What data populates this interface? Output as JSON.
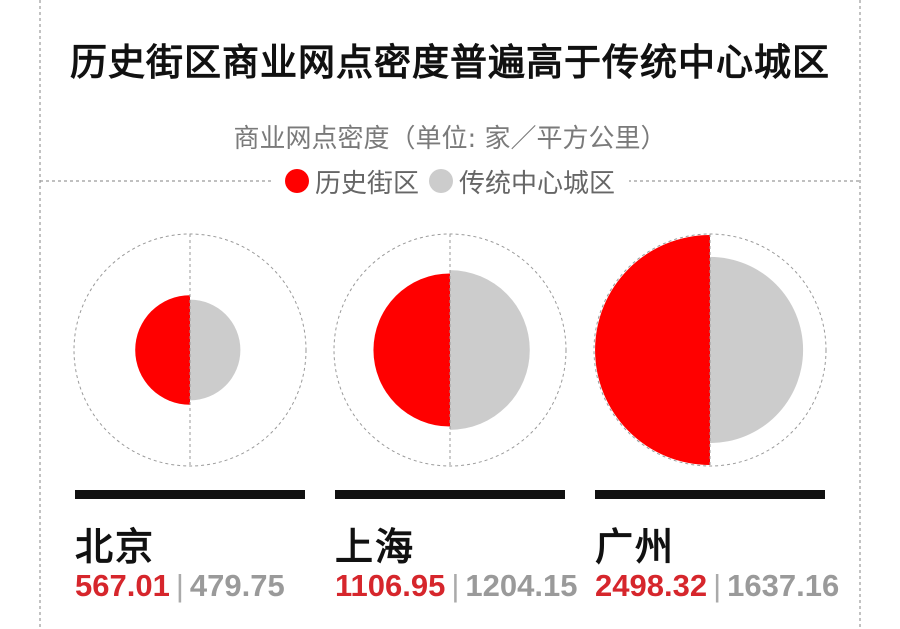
{
  "title": "历史街区商业网点密度普遍高于传统中心城区",
  "subtitle": "商业网点密度（单位: 家／平方公里）",
  "legend": {
    "historic": "历史街区",
    "center": "传统中心城区"
  },
  "colors": {
    "historic": "#ff0000",
    "center": "#cccccc",
    "text_red": "#d6262c"
  },
  "separator": "|",
  "cities": [
    {
      "name": "北京",
      "historic": "567.01",
      "center": "479.75"
    },
    {
      "name": "上海",
      "historic": "1106.95",
      "center": "1204.15"
    },
    {
      "name": "广州",
      "historic": "2498.32",
      "center": "1637.16"
    }
  ],
  "chart_data": {
    "type": "half-circle-proportional",
    "title": "历史街区商业网点密度普遍高于传统中心城区",
    "subtitle": "商业网点密度（单位: 家／平方公里）",
    "categories": [
      "北京",
      "上海",
      "广州"
    ],
    "series": [
      {
        "name": "历史街区",
        "values": [
          567.01,
          1106.95,
          2498.32
        ]
      },
      {
        "name": "传统中心城区",
        "values": [
          479.75,
          1204.15,
          1637.16
        ]
      }
    ],
    "legend_position": "top-center"
  }
}
